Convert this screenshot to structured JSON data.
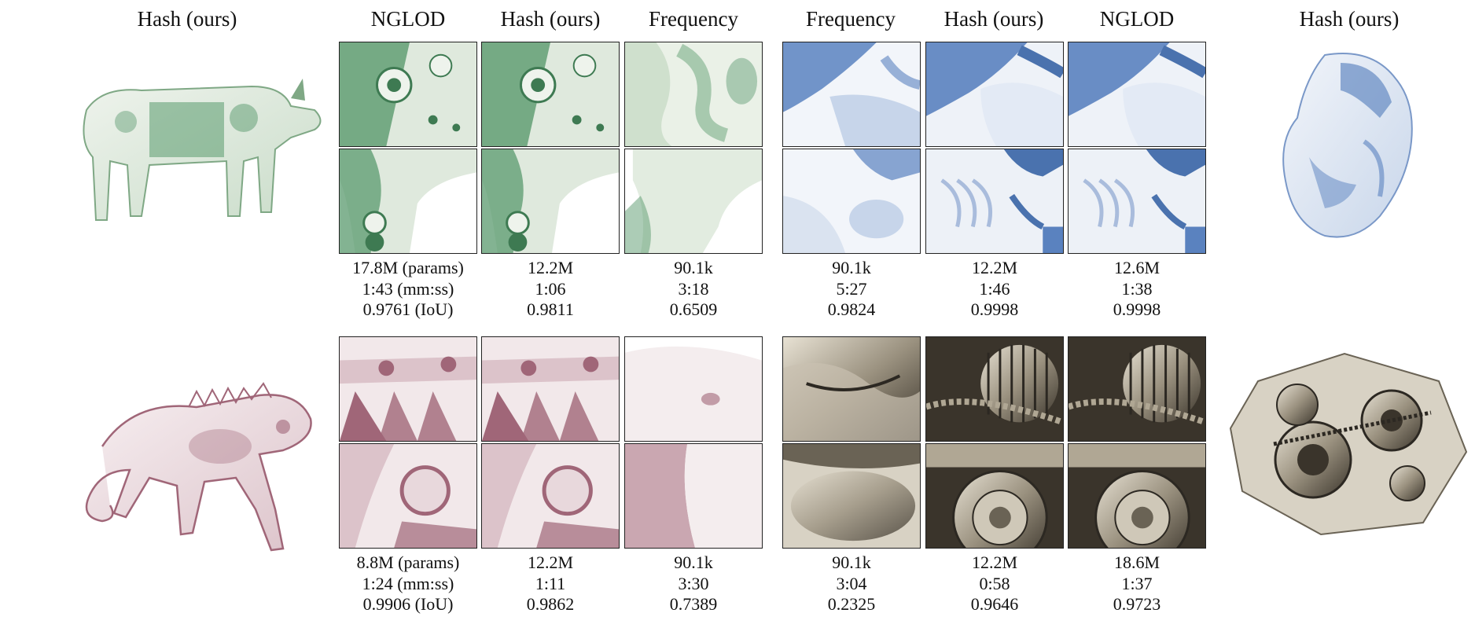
{
  "headers": {
    "left": "Hash (ours)",
    "g1": [
      "NGLOD",
      "Hash (ours)",
      "Frequency"
    ],
    "g2": [
      "Frequency",
      "Hash (ours)",
      "NGLOD"
    ],
    "right": "Hash (ours)"
  },
  "row1": {
    "g1": [
      {
        "params": "17.8M (params)",
        "time": "1:43 (mm:ss)",
        "iou": "0.9761 (IoU)"
      },
      {
        "params": "12.2M",
        "time": "1:06",
        "iou": "0.9811"
      },
      {
        "params": "90.1k",
        "time": "3:18",
        "iou": "0.6509"
      }
    ],
    "g2": [
      {
        "params": "90.1k",
        "time": "5:27",
        "iou": "0.9824"
      },
      {
        "params": "12.2M",
        "time": "1:46",
        "iou": "0.9998"
      },
      {
        "params": "12.6M",
        "time": "1:38",
        "iou": "0.9998"
      }
    ]
  },
  "row2": {
    "g1": [
      {
        "params": "8.8M (params)",
        "time": "1:24 (mm:ss)",
        "iou": "0.9906 (IoU)"
      },
      {
        "params": "12.2M",
        "time": "1:11",
        "iou": "0.9862"
      },
      {
        "params": "90.1k",
        "time": "3:30",
        "iou": "0.7389"
      }
    ],
    "g2": [
      {
        "params": "90.1k",
        "time": "3:04",
        "iou": "0.2325"
      },
      {
        "params": "12.2M",
        "time": "0:58",
        "iou": "0.9646"
      },
      {
        "params": "18.6M",
        "time": "1:37",
        "iou": "0.9723"
      }
    ]
  },
  "colors": {
    "green": "#5a9a6e",
    "green_light": "#e4ede2",
    "blue": "#5a82bf",
    "blue_light": "#eaeff6",
    "pink": "#a06678",
    "pink_light": "#f2e8ea",
    "metal": "#8a8272",
    "metal_dark": "#2c2822",
    "metal_light": "#d8d2c4"
  }
}
